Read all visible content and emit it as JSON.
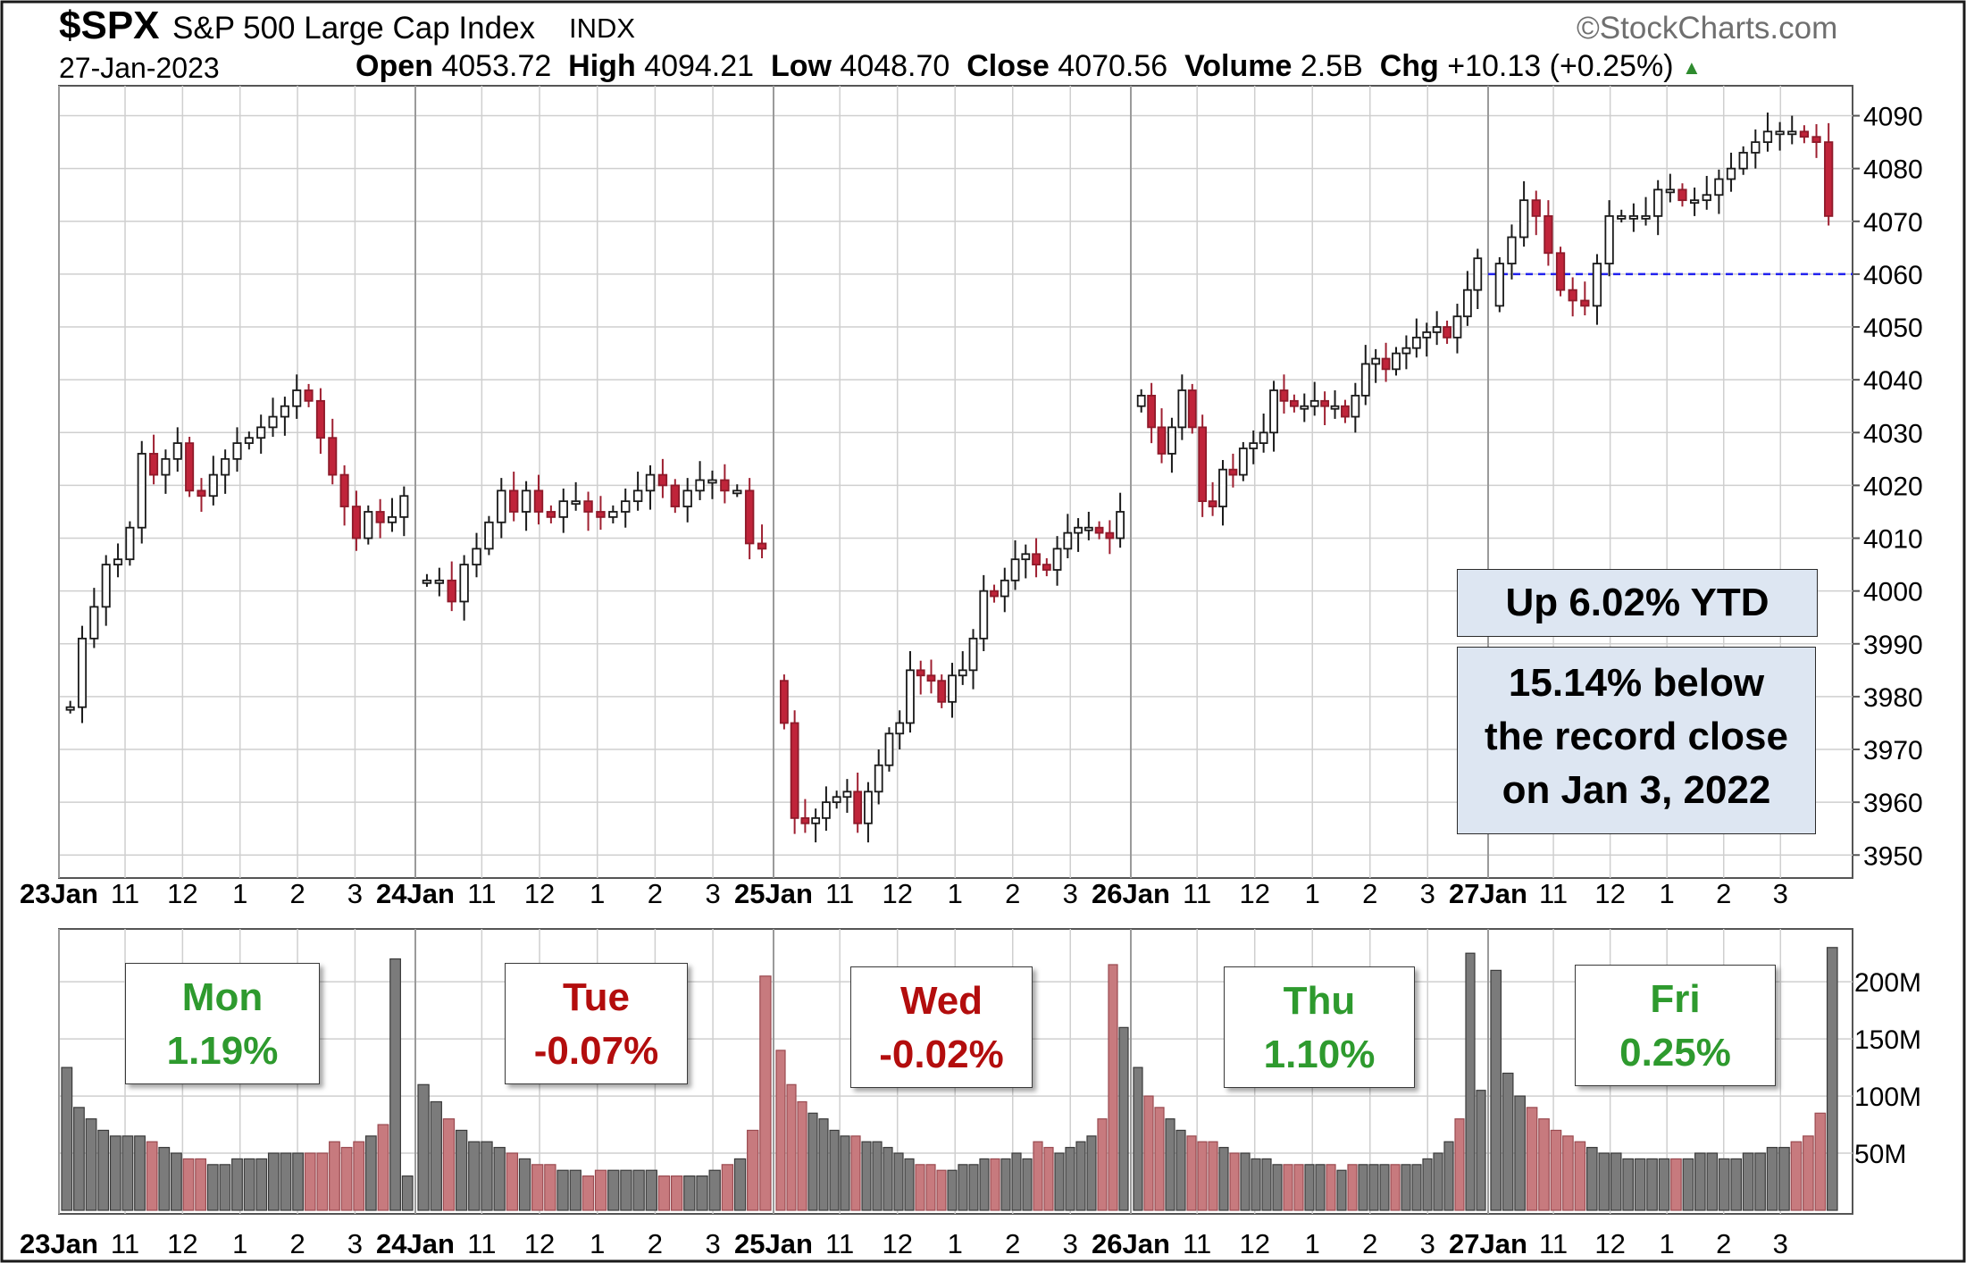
{
  "header": {
    "symbol": "$SPX",
    "name": "S&P 500 Large Cap Index",
    "exchange": "INDX",
    "brand": "©StockCharts.com",
    "date": "27-Jan-2023",
    "open_label": "Open",
    "open": "4053.72",
    "high_label": "High",
    "high": "4094.21",
    "low_label": "Low",
    "low": "4048.70",
    "close_label": "Close",
    "close": "4070.56",
    "volume_label": "Volume",
    "volume": "2.5B",
    "chg_label": "Chg",
    "chg": "+10.13 (+0.25%)",
    "up_arrow": "▲"
  },
  "annotations": {
    "ytd": "Up 6.02% YTD",
    "record_line1": "15.14% below",
    "record_line2": "the record close",
    "record_line3": "on Jan 3, 2022"
  },
  "days": [
    {
      "day": "Mon",
      "change": "1.19%",
      "color": "#2e9a2e"
    },
    {
      "day": "Tue",
      "change": "-0.07%",
      "color": "#b30d0d"
    },
    {
      "day": "Wed",
      "change": "-0.02%",
      "color": "#b30d0d"
    },
    {
      "day": "Thu",
      "change": "1.10%",
      "color": "#2e9a2e"
    },
    {
      "day": "Fri",
      "change": "0.25%",
      "color": "#2e9a2e"
    }
  ],
  "colors": {
    "up_candle_fill": "#ffffff",
    "down_candle_fill": "#c0243a",
    "up_volume": "#7b7b7b",
    "down_volume": "#c77a7e",
    "reference_line": "#2222ee",
    "grid": "#cfcfcf",
    "annotation_fill": "#dde6f2",
    "arrow_up": "#2e8b2e"
  },
  "chart_data": [
    {
      "type": "candlestick",
      "title": "$SPX S&P 500 Large Cap Index INDX",
      "interval": "10-minute",
      "y_ticks": [
        3950,
        3960,
        3970,
        3980,
        3990,
        4000,
        4010,
        4020,
        4030,
        4040,
        4050,
        4060,
        4070,
        4080,
        4090
      ],
      "ylim": [
        3947,
        4095
      ],
      "reference_line": 4060,
      "x_tick_labels": [
        [
          "23Jan",
          "11",
          "12",
          "1",
          "2",
          "3"
        ],
        [
          "24Jan",
          "11",
          "12",
          "1",
          "2",
          "3"
        ],
        [
          "25Jan",
          "11",
          "12",
          "1",
          "2",
          "3"
        ],
        [
          "26Jan",
          "11",
          "12",
          "1",
          "2",
          "3"
        ],
        [
          "27Jan",
          "11",
          "12",
          "1",
          "2",
          "3"
        ]
      ],
      "sessions": [
        {
          "date": "23 Jan",
          "open": 3978,
          "closes": [
            3978,
            3991,
            3997,
            4005,
            4006,
            4012,
            4026,
            4022,
            4025,
            4028,
            4019,
            4018,
            4022,
            4025,
            4028,
            4029,
            4031,
            4033,
            4035,
            4038,
            4036,
            4029,
            4022,
            4016,
            4010,
            4015,
            4013,
            4014,
            4018
          ]
        },
        {
          "date": "24 Jan",
          "open": 4002,
          "closes": [
            4002,
            4002,
            3998,
            4005,
            4008,
            4013,
            4019,
            4015,
            4019,
            4015,
            4014,
            4017,
            4017,
            4015,
            4014,
            4015,
            4017,
            4019,
            4022,
            4020,
            4016,
            4019,
            4021,
            4021,
            4019,
            4019,
            4009,
            4008
          ]
        },
        {
          "date": "25 Jan",
          "open": 3983,
          "closes": [
            3975,
            3957,
            3956,
            3957,
            3960,
            3961,
            3962,
            3956,
            3962,
            3967,
            3973,
            3975,
            3985,
            3984,
            3983,
            3979,
            3984,
            3985,
            3991,
            4000,
            3999,
            4002,
            4006,
            4007,
            4005,
            4004,
            4008,
            4011,
            4012,
            4012,
            4011,
            4010,
            4015
          ]
        },
        {
          "date": "26 Jan",
          "open": 4035,
          "closes": [
            4037,
            4031,
            4026,
            4031,
            4038,
            4031,
            4017,
            4016,
            4023,
            4022,
            4027,
            4028,
            4030,
            4038,
            4036,
            4035,
            4035,
            4036,
            4035,
            4035,
            4033,
            4037,
            4043,
            4044,
            4042,
            4045,
            4046,
            4048,
            4049,
            4050,
            4048,
            4052,
            4057,
            4063
          ]
        },
        {
          "date": "27 Jan",
          "open": 4054,
          "closes": [
            4062,
            4067,
            4074,
            4071,
            4064,
            4057,
            4055,
            4054,
            4062,
            4071,
            4071,
            4071,
            4071,
            4076,
            4076,
            4074,
            4074,
            4075,
            4078,
            4080,
            4083,
            4085,
            4087,
            4087,
            4087,
            4086,
            4085,
            4071
          ]
        }
      ]
    },
    {
      "type": "bar",
      "title": "",
      "y_ticks": [
        "50M",
        "100M",
        "150M",
        "200M"
      ],
      "ylim": [
        0,
        240
      ],
      "unit": "M",
      "sessions": [
        {
          "date": "23 Jan",
          "values": [
            125,
            90,
            80,
            70,
            65,
            65,
            65,
            60,
            55,
            50,
            45,
            45,
            40,
            40,
            45,
            45,
            45,
            50,
            50,
            50,
            50,
            50,
            60,
            55,
            60,
            65,
            75,
            220,
            30
          ]
        },
        {
          "date": "24 Jan",
          "values": [
            110,
            95,
            80,
            70,
            60,
            60,
            55,
            50,
            45,
            40,
            40,
            35,
            35,
            30,
            35,
            35,
            35,
            35,
            35,
            30,
            30,
            30,
            30,
            35,
            40,
            45,
            70,
            205
          ]
        },
        {
          "date": "25 Jan",
          "values": [
            140,
            110,
            95,
            85,
            80,
            70,
            65,
            65,
            60,
            60,
            55,
            50,
            45,
            40,
            40,
            35,
            35,
            40,
            40,
            45,
            45,
            45,
            50,
            45,
            60,
            55,
            50,
            55,
            60,
            65,
            80,
            215,
            160
          ]
        },
        {
          "date": "26 Jan",
          "values": [
            125,
            100,
            90,
            80,
            70,
            65,
            60,
            60,
            55,
            50,
            50,
            45,
            45,
            40,
            40,
            40,
            40,
            40,
            40,
            35,
            40,
            40,
            40,
            40,
            40,
            40,
            40,
            45,
            50,
            60,
            80,
            225,
            105
          ]
        },
        {
          "date": "27 Jan",
          "values": [
            210,
            120,
            100,
            90,
            80,
            70,
            65,
            60,
            55,
            50,
            50,
            45,
            45,
            45,
            45,
            45,
            45,
            50,
            50,
            45,
            45,
            50,
            50,
            55,
            55,
            60,
            65,
            85,
            230
          ]
        }
      ]
    }
  ]
}
